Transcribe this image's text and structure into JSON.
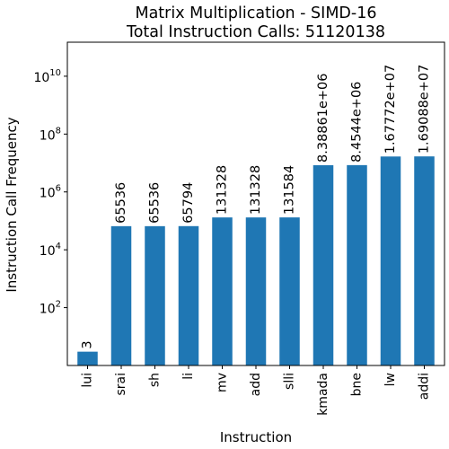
{
  "chart_data": {
    "type": "bar",
    "title_lines": [
      "Matrix Multiplication - SIMD-16",
      "Total Instruction Calls: 51120138"
    ],
    "xlabel": "Instruction",
    "ylabel": "Instruction Call Frequency",
    "y_scale": "log",
    "ylim": [
      1,
      150000000000
    ],
    "y_ticks": [
      {
        "base": "10",
        "exp": "2",
        "value": 100
      },
      {
        "base": "10",
        "exp": "4",
        "value": 10000
      },
      {
        "base": "10",
        "exp": "6",
        "value": 1000000
      },
      {
        "base": "10",
        "exp": "8",
        "value": 100000000
      },
      {
        "base": "10",
        "exp": "10",
        "value": 10000000000
      }
    ],
    "categories": [
      "lui",
      "srai",
      "sh",
      "li",
      "mv",
      "add",
      "slli",
      "kmada",
      "bne",
      "lw",
      "addi"
    ],
    "values": [
      3,
      65536,
      65536,
      65794,
      131328,
      131328,
      131584,
      8388610,
      8454400,
      16777200,
      16908800
    ],
    "value_labels": [
      "3",
      "65536",
      "65536",
      "65794",
      "131328",
      "131328",
      "131584",
      "8.38861e+06",
      "8.4544e+06",
      "1.67772e+07",
      "1.69088e+07"
    ],
    "bar_color": "#1f77b4",
    "grid": false,
    "legend": "none"
  }
}
